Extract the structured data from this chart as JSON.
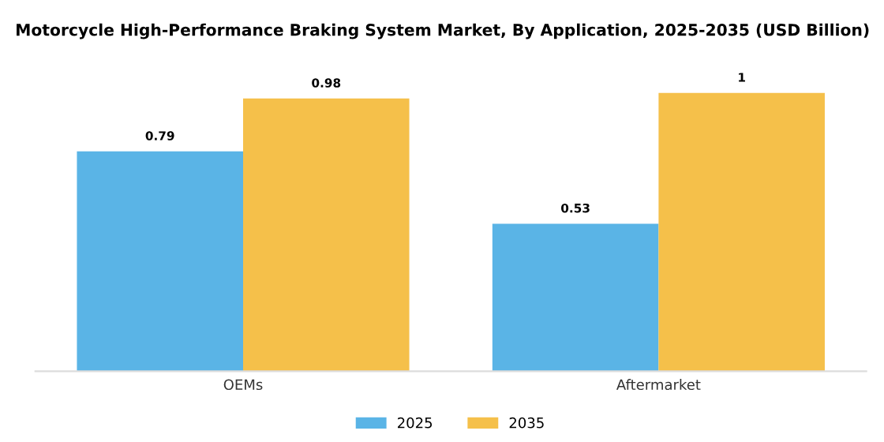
{
  "chart_data": {
    "type": "bar",
    "title": "Motorcycle High-Performance Braking System Market, By Application, 2025-2035 (USD Billion)",
    "categories": [
      "OEMs",
      "Aftermarket"
    ],
    "series": [
      {
        "name": "2025",
        "color": "#5ab4e6",
        "values": [
          0.79,
          0.53
        ]
      },
      {
        "name": "2035",
        "color": "#f5c04a",
        "values": [
          0.98,
          1
        ]
      }
    ],
    "data_labels": true,
    "legend": "bottom",
    "grid": false
  }
}
